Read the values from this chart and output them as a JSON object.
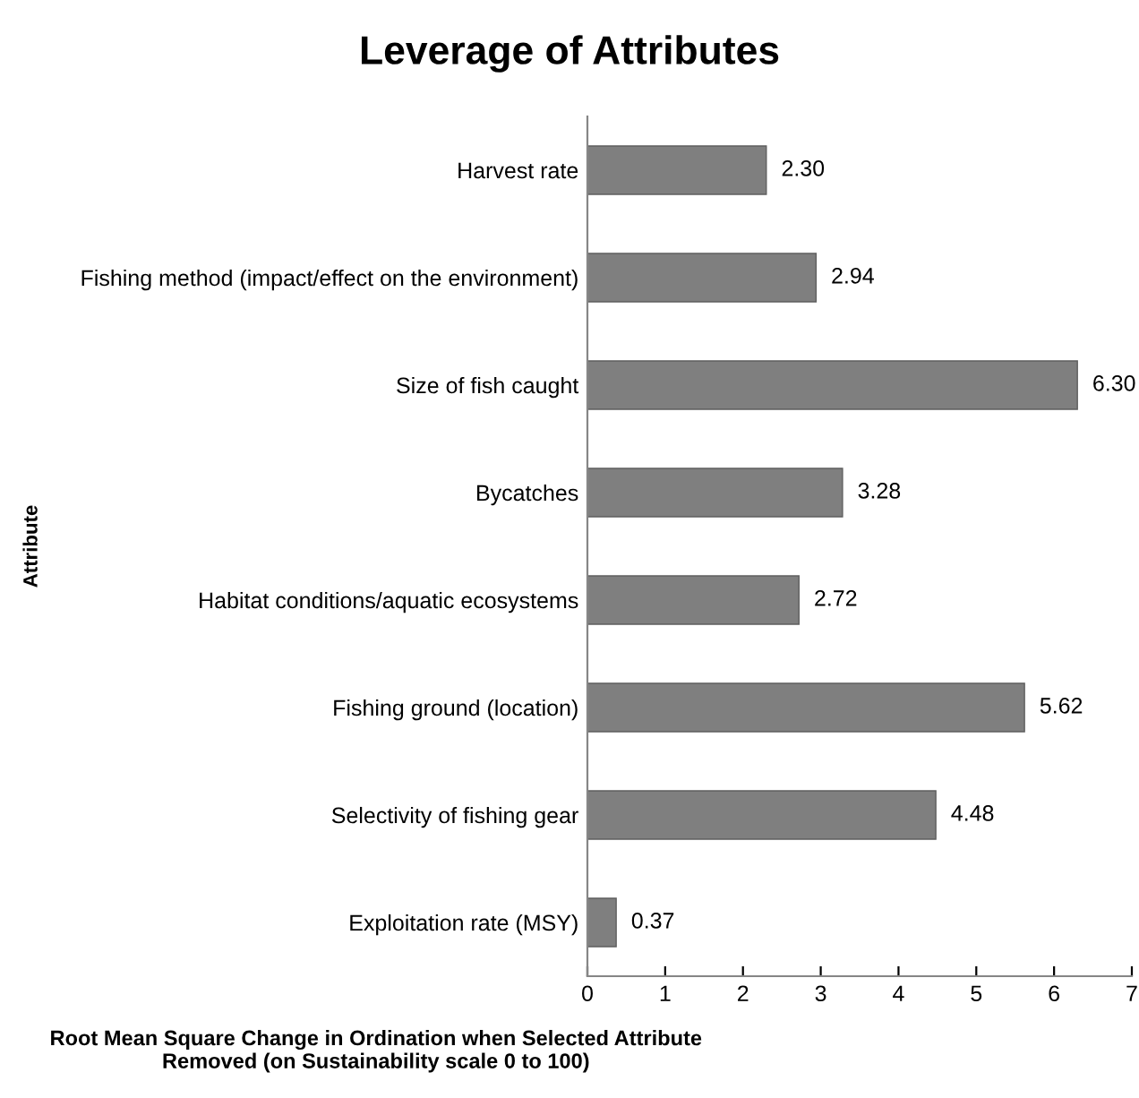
{
  "chart_data": {
    "type": "bar",
    "orientation": "horizontal",
    "title": "Leverage of Attributes",
    "xlabel": "Root Mean Square Change in Ordination when Selected Attribute Removed (on Sustainability scale 0 to 100)",
    "ylabel": "Attribute",
    "categories": [
      "Harvest rate",
      "Fishing method (impact/effect on the environment)",
      "Size of fish caught",
      "Bycatches",
      "Habitat conditions/aquatic ecosystems",
      "Fishing ground (location)",
      "Selectivity of fishing gear",
      "Exploitation rate (MSY)"
    ],
    "values": [
      2.3,
      2.94,
      6.3,
      3.28,
      2.72,
      5.62,
      4.48,
      0.37
    ],
    "value_labels": [
      "2.30",
      "2.94",
      "6.30",
      "3.28",
      "2.72",
      "5.62",
      "4.48",
      "0.37"
    ],
    "color": "#7f7f7f",
    "xlim": [
      0,
      7
    ],
    "xticks": [
      0,
      1,
      2,
      3,
      4,
      5,
      6,
      7
    ],
    "grid": false,
    "legend": false
  }
}
